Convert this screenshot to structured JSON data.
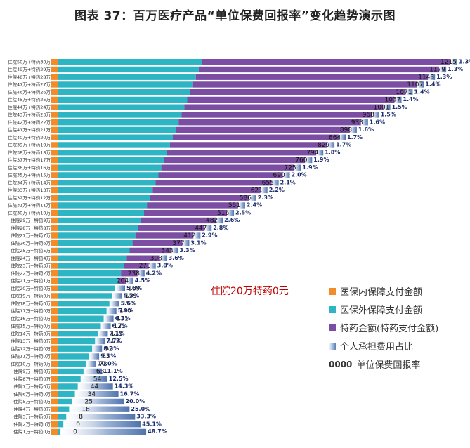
{
  "title": "图表 37：百万医疗产品“单位保费回报率”变化趋势演示图",
  "annotation": "住院20万特药0元",
  "legend": [
    {
      "label": "医保内保障支付金额",
      "color": "#f28c28",
      "icon": "square-icon"
    },
    {
      "label": "医保外保障支付金额",
      "color": "#2eb5c4",
      "icon": "square-icon"
    },
    {
      "label": "特药金额(特药支付金额)",
      "color": "#7b4ea3",
      "icon": "square-icon"
    },
    {
      "label": "个人承担费用占比",
      "color": "#5a80b8",
      "icon": "gradient-bar-icon"
    },
    {
      "label": "单位保费回报率",
      "sample": "0000"
    }
  ],
  "chart_data": {
    "type": "bar",
    "orientation": "horizontal",
    "stacked": true,
    "categories": [
      "住院50万+特药30万",
      "住院49万+特药29万",
      "住院48万+特药28万",
      "住院47万+特药27万",
      "住院46万+特药26万",
      "住院45万+特药25万",
      "住院44万+特药24万",
      "住院43万+特药23万",
      "住院42万+特药22万",
      "住院41万+特药21万",
      "住院40万+特药20万",
      "住院39万+特药19万",
      "住院38万+特药18万",
      "住院37万+特药17万",
      "住院36万+特药16万",
      "住院35万+特药15万",
      "住院34万+特药14万",
      "住院33万+特药13万",
      "住院32万+特药12万",
      "住院31万+特药11万",
      "住院30万+特药10万",
      "住院29万+特药9万",
      "住院28万+特药8万",
      "住院27万+特药7万",
      "住院26万+特药6万",
      "住院25万+特药5万",
      "住院24万+特药4万",
      "住院23万+特药3万",
      "住院22万+特药2万",
      "住院21万+特药1万",
      "住院20万+特药0万",
      "住院19万+特药0万",
      "住院18万+特药0万",
      "住院17万+特药0万",
      "住院16万+特药0万",
      "住院15万+特药0万",
      "住院14万+特药0万",
      "住院13万+特药0万",
      "住院12万+特药0万",
      "住院11万+特药0万",
      "住院10万+特药0万",
      "住院9万+特药0万",
      "住院8万+特药0万",
      "住院7万+特药0万",
      "住院6万+特药0万",
      "住院5万+特药0万",
      "住院4万+特药0万",
      "住院3万+特药0万",
      "住院2万+特药0万",
      "住院1万+特药0万"
    ],
    "return_rate": [
      1215,
      1179,
      1143,
      1107,
      1071,
      1037,
      1001,
      968,
      933,
      898,
      864,
      829,
      794,
      760,
      725,
      690,
      655,
      621,
      586,
      551,
      516,
      482,
      447,
      412,
      377,
      343,
      308,
      273,
      238,
      204,
      169,
      159,
      150,
      140,
      131,
      121,
      111,
      102,
      92,
      83,
      73,
      63,
      54,
      44,
      34,
      25,
      18,
      8,
      0,
      0
    ],
    "personal_share_pct": [
      "1.3%",
      "1.3%",
      "1.3%",
      "1.4%",
      "1.4%",
      "1.4%",
      "1.5%",
      "1.5%",
      "1.6%",
      "1.6%",
      "1.7%",
      "1.7%",
      "1.8%",
      "1.9%",
      "1.9%",
      "2.0%",
      "2.1%",
      "2.2%",
      "2.3%",
      "2.4%",
      "2.5%",
      "2.6%",
      "2.8%",
      "2.9%",
      "3.1%",
      "3.3%",
      "3.6%",
      "3.8%",
      "4.2%",
      "4.5%",
      "5.0%",
      "5.3%",
      "5.6%",
      "5.9%",
      "6.3%",
      "6.7%",
      "7.1%",
      "7.7%",
      "8.3%",
      "9.1%",
      "10.0%",
      "11.1%",
      "12.5%",
      "14.3%",
      "16.7%",
      "20.0%",
      "25.0%",
      "33.3%",
      "45.1%",
      "48.7%"
    ],
    "series": [
      {
        "name": "医保内保障支付金额",
        "color": "#f28c28"
      },
      {
        "name": "医保外保障支付金额",
        "color": "#2eb5c4"
      },
      {
        "name": "特药金额(特药支付金额)",
        "color": "#7b4ea3"
      },
      {
        "name": "个人承担费用占比",
        "color": "#5a80b8"
      }
    ],
    "grid": false,
    "legend_position": "right"
  }
}
